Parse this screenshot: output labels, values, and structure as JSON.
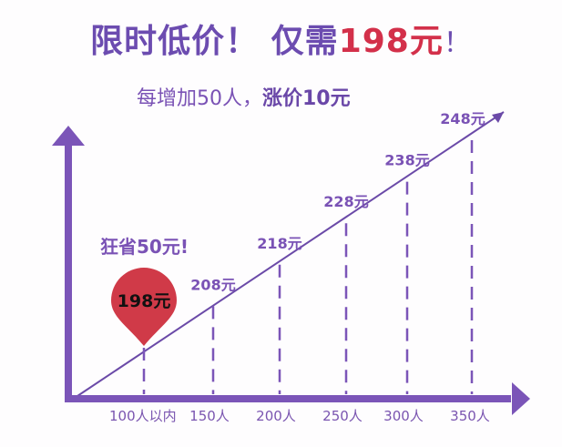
{
  "header": {
    "title_part1": "限时低价！ 仅需",
    "title_price": "198元",
    "title_end": "！",
    "subtitle_part1": "每增加50人，",
    "subtitle_part2": "涨价10元"
  },
  "callout": "狂省50元!",
  "colors": {
    "axis": "#7b55b8",
    "highlight": "#d03a48",
    "text": "#7a52b5"
  },
  "chart_data": {
    "type": "line",
    "categories": [
      "100人以内",
      "150人",
      "200人",
      "250人",
      "300人",
      "350人"
    ],
    "values": [
      198,
      208,
      218,
      228,
      238,
      248
    ],
    "value_labels": [
      "198元",
      "208元",
      "218元",
      "228元",
      "238元",
      "248元"
    ],
    "highlighted_index": 0,
    "grid": false
  }
}
